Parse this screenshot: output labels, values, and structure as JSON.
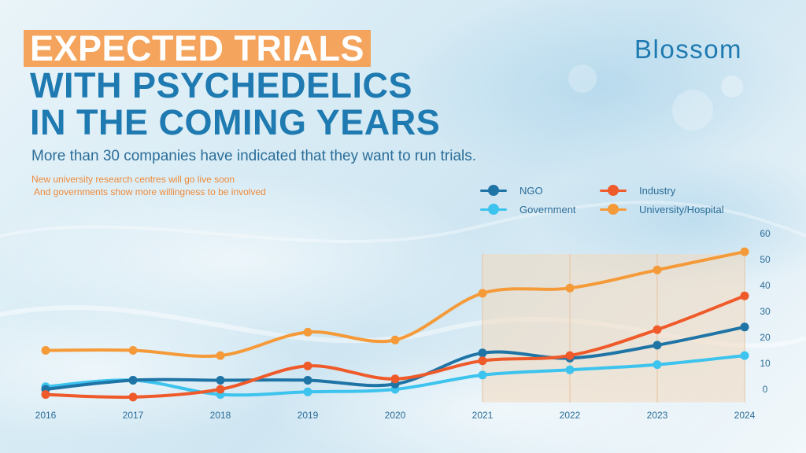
{
  "title": {
    "line1": "EXPECTED TRIALS",
    "line2": "WITH PSYCHEDELICS",
    "line3": "IN THE COMING YEARS"
  },
  "subtitle": "More than 30 companies have indicated that they want to run trials.",
  "notes": [
    "New university research centres will go live soon",
    "And governments show more willingness to be involved"
  ],
  "logo": {
    "text": "Blossom"
  },
  "colors": {
    "ngo": "#1f74a6",
    "industry": "#ef5a2a",
    "government": "#3cc3ee",
    "university": "#f59a38",
    "highlight_band": "#f3d9bd"
  },
  "chart_data": {
    "type": "line",
    "x": [
      "2016",
      "2017",
      "2018",
      "2019",
      "2020",
      "2021",
      "2022",
      "2023",
      "2024"
    ],
    "yticks": [
      0,
      10,
      20,
      30,
      40,
      50,
      60
    ],
    "ylim": [
      -5,
      60
    ],
    "highlight_from": "2021",
    "series": [
      {
        "name": "NGO",
        "key": "ngo",
        "values": [
          0,
          3.5,
          3.5,
          3.5,
          2,
          14,
          12,
          17,
          24
        ]
      },
      {
        "name": "Industry",
        "key": "industry",
        "values": [
          -2,
          -3,
          0,
          9,
          4,
          11,
          13,
          23,
          36
        ]
      },
      {
        "name": "Government",
        "key": "government",
        "values": [
          1,
          3.5,
          -2,
          -1,
          0,
          5.5,
          7.5,
          9.5,
          13
        ]
      },
      {
        "name": "University/Hospital",
        "key": "university",
        "values": [
          15,
          15,
          13,
          22,
          19,
          37,
          39,
          46,
          53
        ]
      }
    ]
  }
}
